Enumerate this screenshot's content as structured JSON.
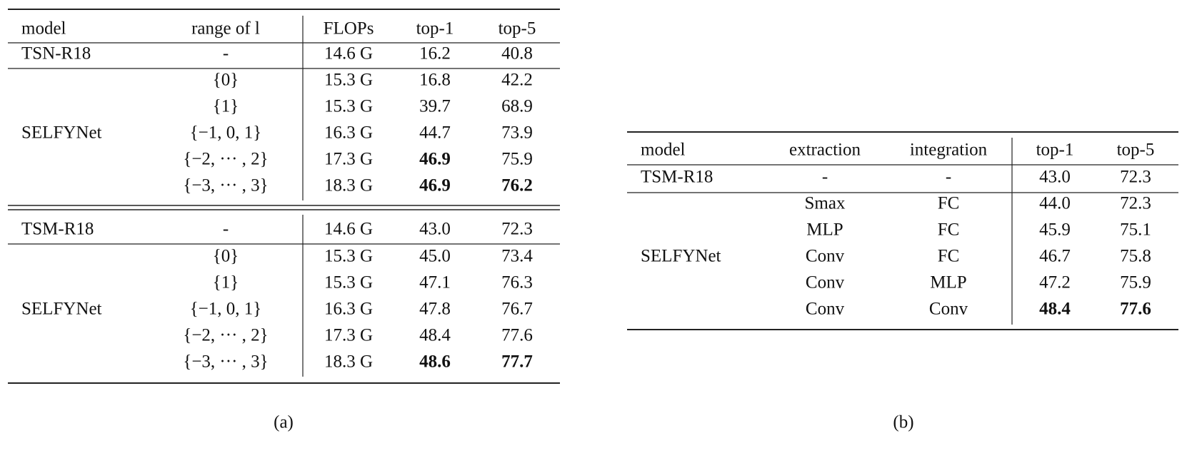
{
  "table_a": {
    "header": [
      "model",
      "range of l",
      "FLOPs",
      "top-1",
      "top-5"
    ],
    "sections": [
      [
        {
          "model": "TSN-R18",
          "rows": [
            [
              "-",
              "14.6 G",
              "16.2",
              "40.8"
            ]
          ]
        },
        {
          "model": "SELFYNet",
          "rows": [
            [
              "{0}",
              "15.3 G",
              "16.8",
              "42.2"
            ],
            [
              "{1}",
              "15.3 G",
              "39.7",
              "68.9"
            ],
            [
              "{−1, 0, 1}",
              "16.3 G",
              "44.7",
              "73.9"
            ],
            [
              "{−2, ··· , 2}",
              "17.3 G",
              "46.9",
              "75.9"
            ],
            [
              "{−3, ··· , 3}",
              "18.3 G",
              "46.9",
              "76.2"
            ]
          ]
        }
      ],
      [
        {
          "model": "TSM-R18",
          "rows": [
            [
              "-",
              "14.6 G",
              "43.0",
              "72.3"
            ]
          ]
        },
        {
          "model": "SELFYNet",
          "rows": [
            [
              "{0}",
              "15.3 G",
              "45.0",
              "73.4"
            ],
            [
              "{1}",
              "15.3 G",
              "47.1",
              "76.3"
            ],
            [
              "{−1, 0, 1}",
              "16.3 G",
              "47.8",
              "76.7"
            ],
            [
              "{−2, ··· , 2}",
              "17.3 G",
              "48.4",
              "77.6"
            ],
            [
              "{−3, ··· , 3}",
              "18.3 G",
              "48.6",
              "77.7"
            ]
          ]
        }
      ]
    ],
    "caption": "(a)"
  },
  "table_b": {
    "header": [
      "model",
      "extraction",
      "integration",
      "top-1",
      "top-5"
    ],
    "groups": [
      {
        "model": "TSM-R18",
        "rows": [
          [
            "-",
            "-",
            "43.0",
            "72.3"
          ]
        ]
      },
      {
        "model": "SELFYNet",
        "rows": [
          [
            "Smax",
            "FC",
            "44.0",
            "72.3"
          ],
          [
            "MLP",
            "FC",
            "45.9",
            "75.1"
          ],
          [
            "Conv",
            "FC",
            "46.7",
            "75.8"
          ],
          [
            "Conv",
            "MLP",
            "47.2",
            "75.9"
          ],
          [
            "Conv",
            "Conv",
            "48.4",
            "77.6"
          ]
        ]
      }
    ],
    "caption": "(b)"
  }
}
